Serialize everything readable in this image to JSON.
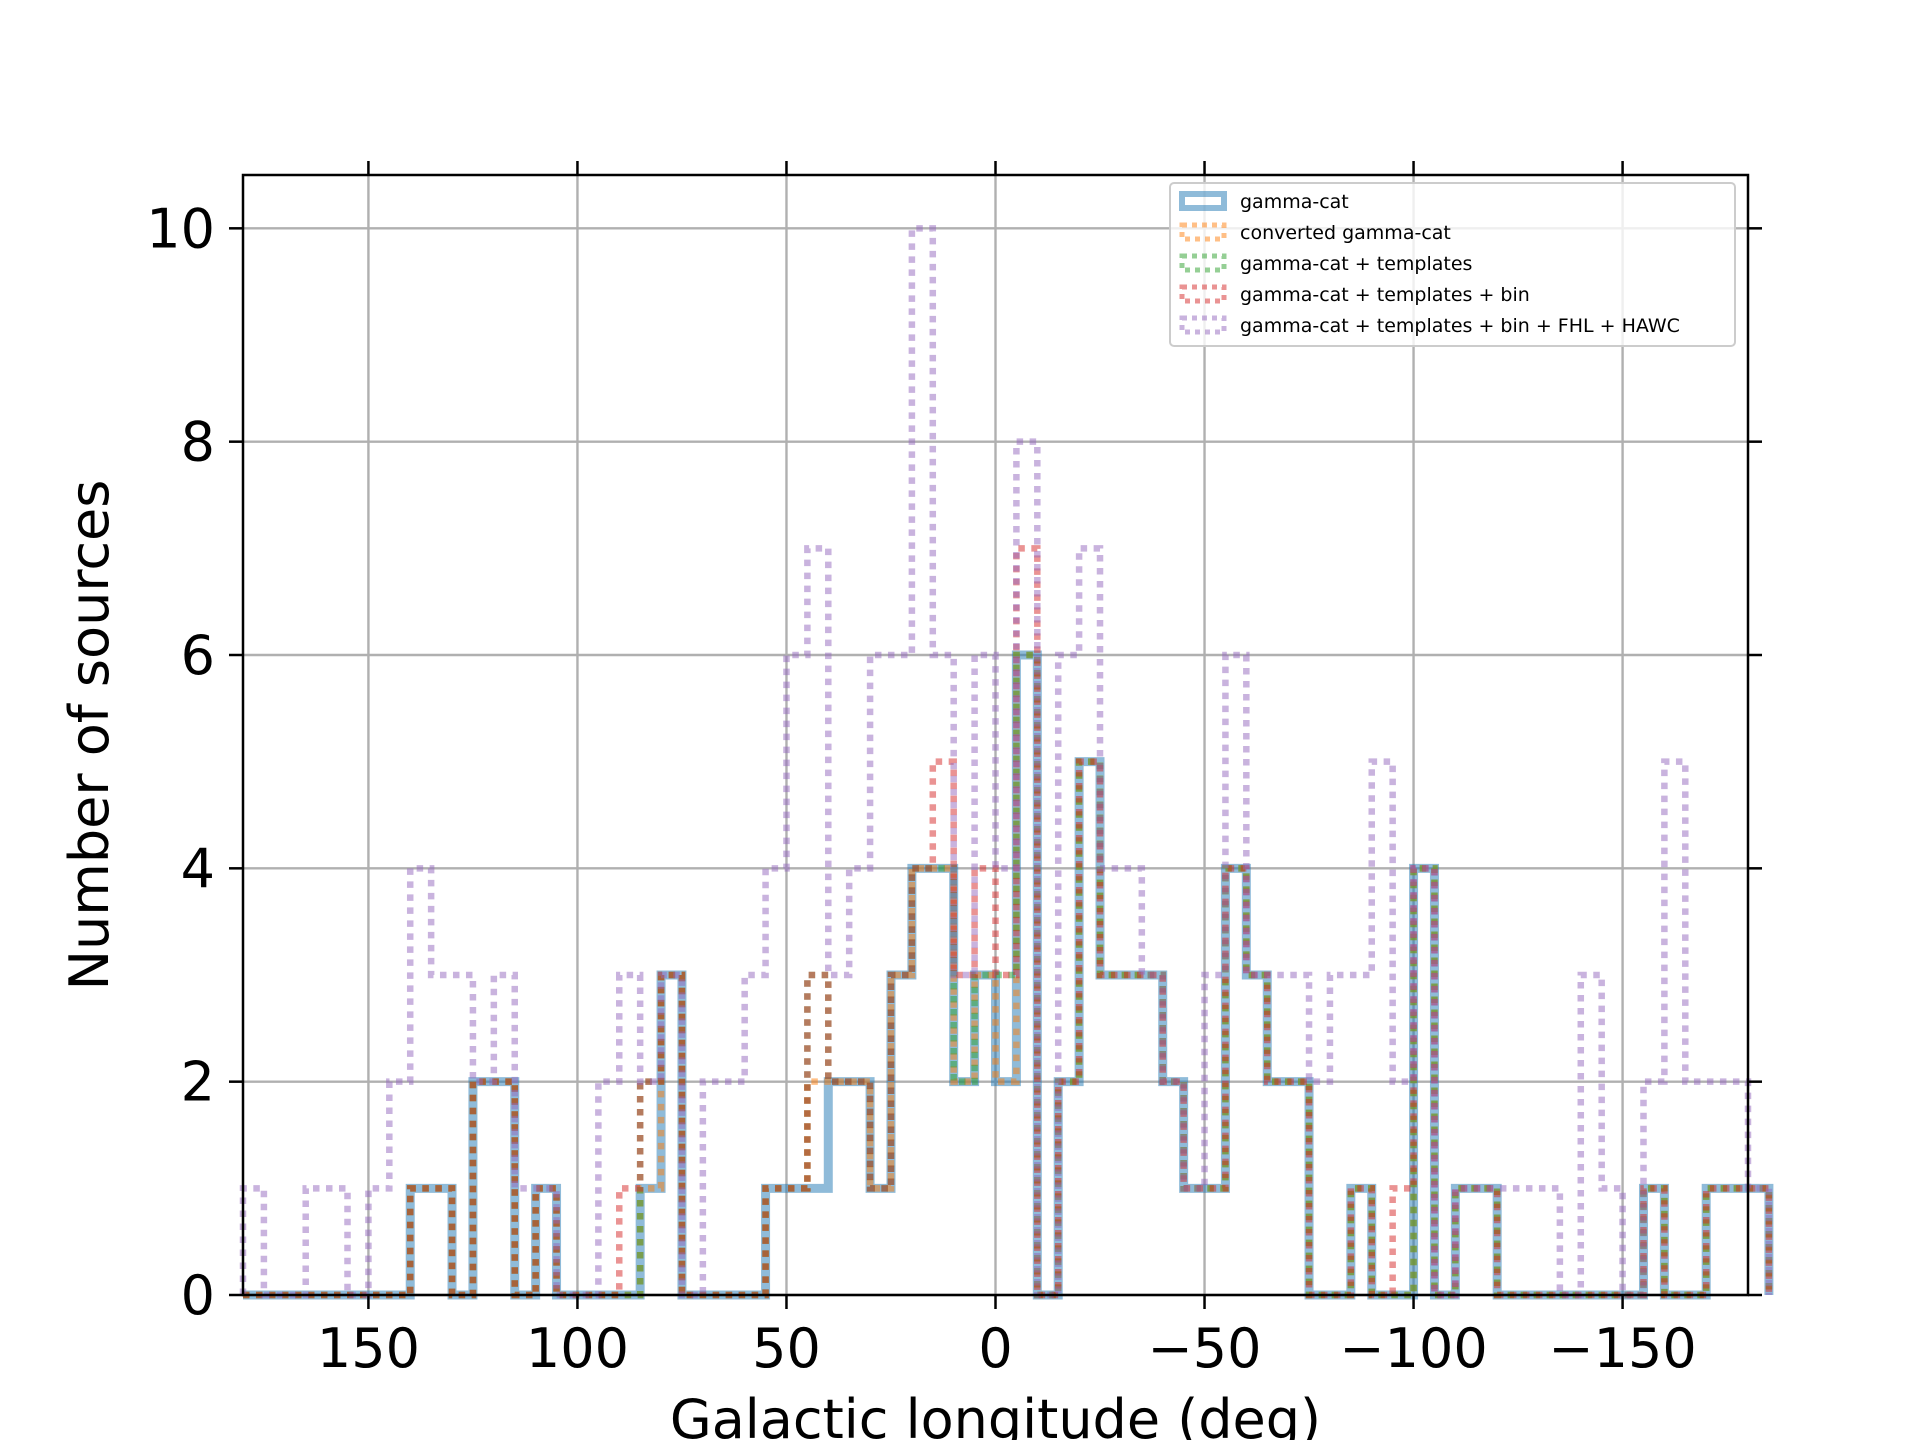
{
  "chart_data": {
    "type": "histogram",
    "xlabel": "Galactic longitude (deg)",
    "ylabel": "Number of sources",
    "xlim": [
      180,
      -180
    ],
    "ylim": [
      0,
      10.5
    ],
    "bin_width": 5,
    "x_ticks": [
      150,
      100,
      50,
      0,
      -50,
      -100,
      -150
    ],
    "x_tick_labels": [
      "150",
      "100",
      "50",
      "0",
      "−50",
      "−100",
      "−150"
    ],
    "y_ticks": [
      0,
      2,
      4,
      6,
      8,
      10
    ],
    "y_tick_labels": [
      "0",
      "2",
      "4",
      "6",
      "8",
      "10"
    ],
    "grid": true,
    "legend_position": "upper-right",
    "series": [
      {
        "name": "gamma-cat",
        "color": "#1f77b4",
        "alpha": 0.5,
        "linestyle": "solid",
        "counts": [
          0,
          0,
          0,
          0,
          0,
          0,
          0,
          0,
          1,
          1,
          0,
          2,
          2,
          0,
          1,
          0,
          0,
          0,
          0,
          1,
          3,
          0,
          0,
          0,
          0,
          1,
          1,
          1,
          2,
          2,
          1,
          3,
          4,
          4,
          2,
          3,
          2,
          6,
          0,
          2,
          5,
          3,
          3,
          3,
          2,
          1,
          1,
          4,
          3,
          2,
          2,
          0,
          0,
          1,
          0,
          0,
          4,
          0,
          1,
          1,
          0,
          0,
          0,
          0,
          0,
          0,
          0,
          1,
          0,
          0,
          1,
          1,
          1
        ]
      },
      {
        "name": "converted gamma-cat",
        "color": "#ff7f0e",
        "alpha": 0.5,
        "linestyle": "dotted",
        "counts": [
          0,
          0,
          0,
          0,
          0,
          0,
          0,
          0,
          1,
          1,
          0,
          2,
          2,
          0,
          1,
          0,
          0,
          0,
          0,
          1,
          3,
          0,
          0,
          0,
          0,
          1,
          1,
          2,
          2,
          2,
          1,
          3,
          4,
          4,
          2,
          3,
          2,
          6,
          0,
          2,
          5,
          3,
          3,
          3,
          2,
          1,
          1,
          4,
          3,
          2,
          2,
          0,
          0,
          1,
          0,
          0,
          4,
          0,
          1,
          1,
          0,
          0,
          0,
          0,
          0,
          0,
          0,
          1,
          0,
          0,
          1,
          1,
          1
        ]
      },
      {
        "name": "gamma-cat + templates",
        "color": "#2ca02c",
        "alpha": 0.5,
        "linestyle": "dotted",
        "counts": [
          0,
          0,
          0,
          0,
          0,
          0,
          0,
          0,
          1,
          1,
          0,
          2,
          2,
          0,
          1,
          0,
          0,
          0,
          0,
          2,
          3,
          0,
          0,
          0,
          0,
          1,
          1,
          3,
          2,
          2,
          1,
          3,
          4,
          4,
          2,
          3,
          3,
          6,
          0,
          2,
          5,
          3,
          3,
          3,
          2,
          1,
          1,
          4,
          3,
          2,
          2,
          0,
          0,
          1,
          0,
          0,
          4,
          0,
          1,
          1,
          0,
          0,
          0,
          0,
          0,
          0,
          0,
          1,
          0,
          0,
          1,
          1,
          1
        ]
      },
      {
        "name": "gamma-cat + templates + bin",
        "color": "#d62728",
        "alpha": 0.5,
        "linestyle": "dotted",
        "counts": [
          0,
          0,
          0,
          0,
          0,
          0,
          0,
          0,
          1,
          1,
          0,
          2,
          2,
          0,
          1,
          0,
          0,
          0,
          1,
          2,
          3,
          0,
          0,
          0,
          0,
          1,
          1,
          3,
          2,
          2,
          1,
          3,
          4,
          5,
          3,
          4,
          3,
          7,
          0,
          2,
          5,
          3,
          3,
          3,
          2,
          1,
          1,
          4,
          3,
          2,
          2,
          0,
          0,
          1,
          0,
          1,
          4,
          0,
          1,
          1,
          0,
          0,
          0,
          0,
          0,
          0,
          0,
          1,
          0,
          0,
          1,
          1,
          1
        ]
      },
      {
        "name": "gamma-cat + templates + bin + FHL + HAWC",
        "color": "#9467bd",
        "alpha": 0.5,
        "linestyle": "dotted",
        "counts": [
          1,
          0,
          0,
          1,
          1,
          0,
          1,
          2,
          4,
          3,
          3,
          2,
          3,
          1,
          1,
          0,
          0,
          2,
          3,
          2,
          3,
          0,
          2,
          2,
          3,
          4,
          6,
          7,
          3,
          4,
          6,
          6,
          10,
          6,
          3,
          6,
          4,
          8,
          0,
          6,
          7,
          4,
          4,
          3,
          2,
          1,
          3,
          6,
          3,
          3,
          3,
          2,
          3,
          3,
          5,
          2,
          4,
          0,
          1,
          1,
          1,
          1,
          1,
          0,
          3,
          1,
          0,
          2,
          5,
          2,
          2,
          2,
          1
        ]
      }
    ]
  }
}
